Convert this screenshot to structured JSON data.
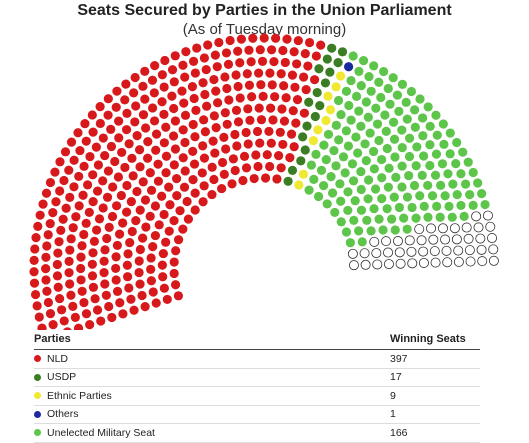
{
  "chart_data": {
    "type": "parliament",
    "title": "Seats Secured by Parties in the Union Parliament",
    "subtitle": "(As of Tuesday morning)",
    "legend_header": {
      "parties": "Parties",
      "seats": "Winning Seats"
    },
    "series": [
      {
        "name": "NLD",
        "value": 397,
        "color": "#d7191c"
      },
      {
        "name": "USDP",
        "value": 17,
        "color": "#3a7d22"
      },
      {
        "name": "Ethnic Parties",
        "value": 9,
        "color": "#f0e933"
      },
      {
        "name": "Others",
        "value": 1,
        "color": "#1a2a9c"
      },
      {
        "name": "Unelected Military Seat",
        "value": 166,
        "color": "#5cc54a"
      }
    ],
    "undecided_seats": 74,
    "undecided_color": "#ffffff"
  }
}
